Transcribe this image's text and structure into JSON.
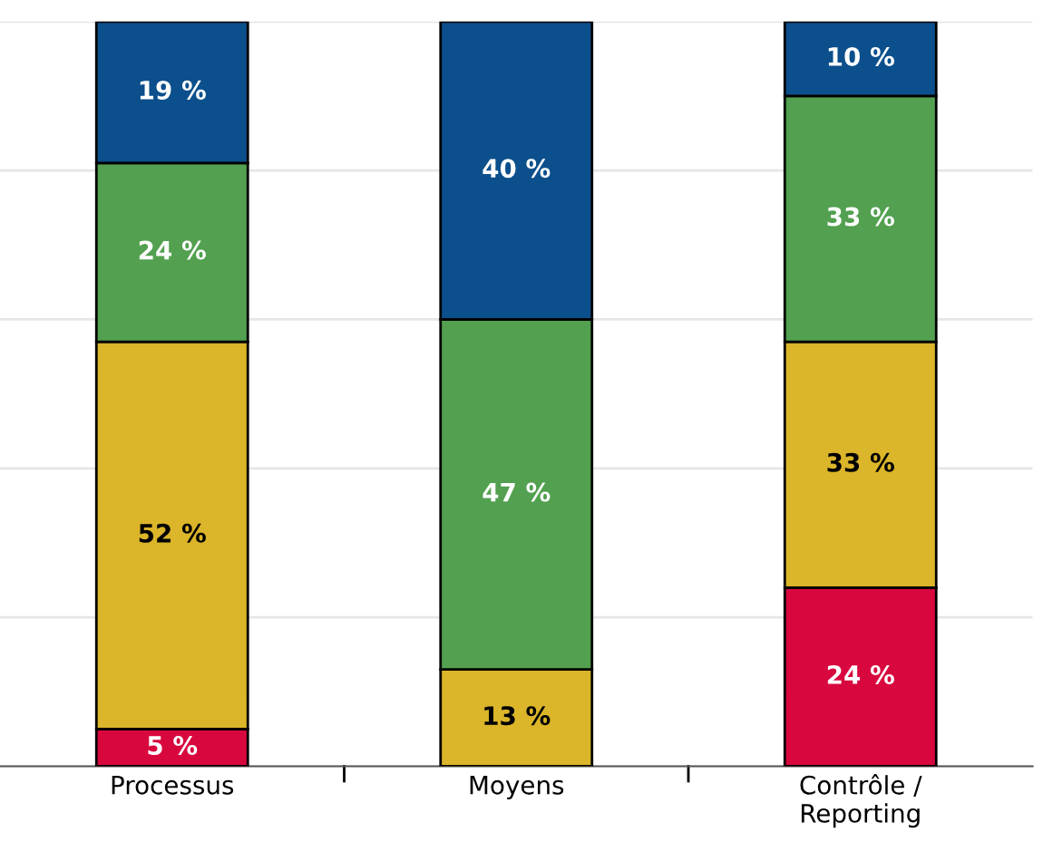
{
  "chart_data": {
    "type": "bar",
    "stacked": true,
    "categories": [
      "Processus",
      "Moyens",
      "Contrôle /\nReporting"
    ],
    "series": [
      {
        "color": "#d8083f",
        "values": [
          5,
          null,
          24
        ],
        "value_labels": [
          "5 %",
          null,
          "24 %"
        ]
      },
      {
        "color": "#dbb52a",
        "values": [
          52,
          13,
          33
        ],
        "value_labels": [
          "52 %",
          "13 %",
          "33 %"
        ]
      },
      {
        "color": "#52a050",
        "values": [
          24,
          47,
          33
        ],
        "value_labels": [
          "24 %",
          "47 %",
          "33 %"
        ]
      },
      {
        "color": "#0b4f8c",
        "values": [
          19,
          40,
          10
        ],
        "value_labels": [
          "19 %",
          "40 %",
          "10 %"
        ]
      }
    ],
    "grid": "y",
    "tick_labels": "x"
  }
}
